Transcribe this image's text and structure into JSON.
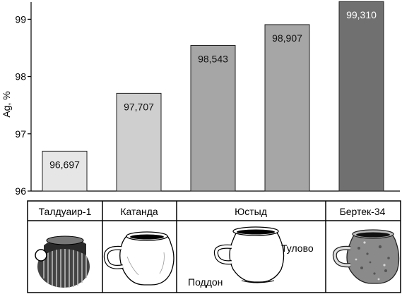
{
  "chart_data": {
    "type": "bar",
    "ylabel": "Ag, %",
    "ylim": [
      96,
      99.3
    ],
    "yticks": [
      96,
      97,
      98,
      99
    ],
    "grid": false,
    "bars": [
      {
        "value": 96.697,
        "label": "96,697",
        "color": "#e6e6e6"
      },
      {
        "value": 97.707,
        "label": "97,707",
        "color": "#cfcfcf"
      },
      {
        "value": 98.543,
        "label": "98,543",
        "color": "#a6a6a6"
      },
      {
        "value": 98.907,
        "label": "98,907",
        "color": "#a6a6a6"
      },
      {
        "value": 99.31,
        "label": "99,310",
        "color": "#707070"
      }
    ],
    "groups": [
      {
        "name": "Талдуаир-1"
      },
      {
        "name": "Катанда"
      },
      {
        "name": "Юстыд"
      },
      {
        "name": "Бертек-34"
      }
    ],
    "annotations": {
      "body": "Тулово",
      "base": "Поддон"
    }
  }
}
